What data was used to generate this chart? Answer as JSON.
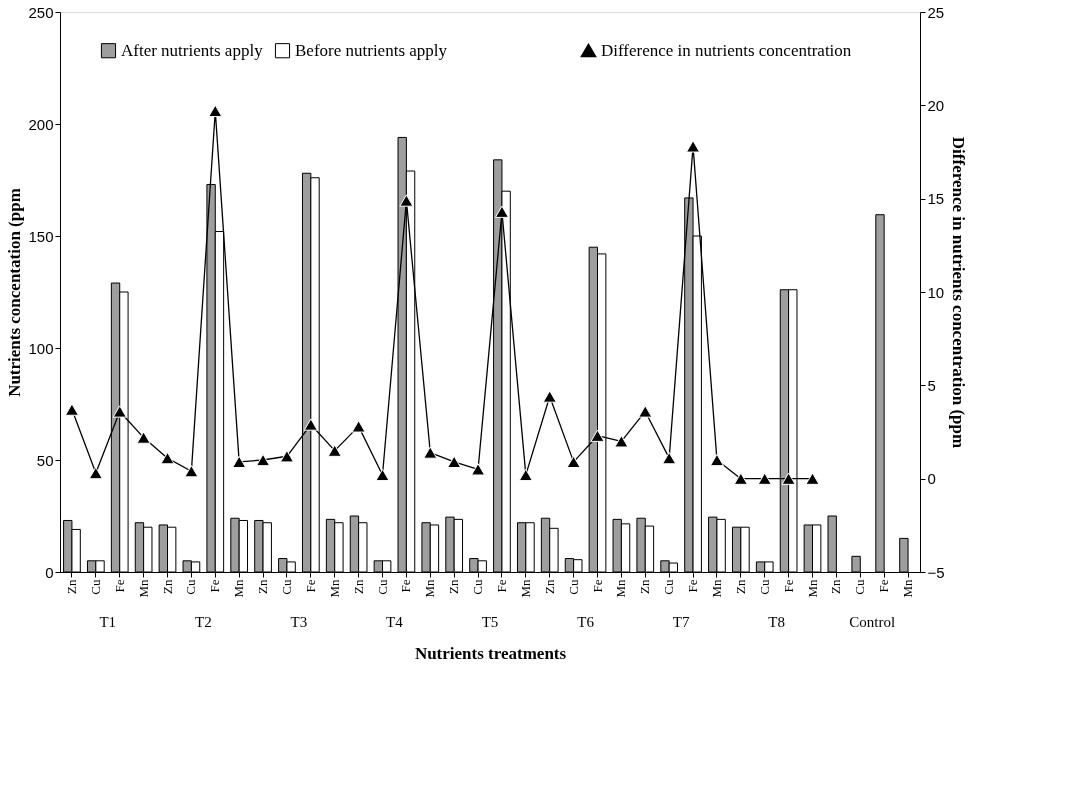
{
  "chart_data": {
    "type": "bar",
    "xlabel": "Nutrients treatments",
    "ylabel": "Nutrients concentation (ppm",
    "y2label": "Difference in nutrients concentration (ppm",
    "categories": [
      "Zn",
      "Cu",
      "Fe",
      "Mn",
      "Zn",
      "Cu",
      "Fe",
      "Mn",
      "Zn",
      "Cu",
      "Fe",
      "Mn",
      "Zn",
      "Cu",
      "Fe",
      "Mn",
      "Zn",
      "Cu",
      "Fe",
      "Mn",
      "Zn",
      "Cu",
      "Fe",
      "Mn",
      "Zn",
      "Cu",
      "Fe",
      "Mn",
      "Zn",
      "Cu",
      "Fe",
      "Mn",
      "Zn",
      "Cu",
      "Fe",
      "Mn"
    ],
    "annotations": [
      "T1",
      "T2",
      "T3",
      "T4",
      "T5",
      "T6",
      "T7",
      "T8",
      "Control"
    ],
    "series": [
      {
        "name": "After nutrients apply",
        "color": "#9e9e9e",
        "values": [
          23,
          5,
          129,
          22,
          21,
          5,
          173,
          24,
          23,
          6,
          178,
          23.5,
          25,
          5,
          194,
          22,
          24.5,
          6,
          184,
          22,
          24,
          6,
          145,
          23.5,
          24,
          5,
          167,
          24.5,
          20,
          4.5,
          126,
          21,
          25,
          7,
          159.5,
          15
        ]
      },
      {
        "name": "Before nutrients apply",
        "color": "#ffffff",
        "values": [
          19,
          5,
          125,
          20,
          20,
          4.5,
          152,
          23,
          22,
          4.5,
          176,
          22,
          22,
          5,
          179,
          21,
          23.5,
          5,
          170,
          22,
          19.5,
          5.5,
          142,
          21.5,
          20.5,
          4,
          150,
          23.5,
          20,
          4.5,
          126,
          21,
          null,
          null,
          null,
          null
        ]
      },
      {
        "name": "Difference in nutrients concentration",
        "type": "line",
        "axis": "y2",
        "color": "#000000",
        "marker": "triangle",
        "values": [
          3.7,
          0.3,
          3.6,
          2.2,
          1.1,
          0.4,
          19.7,
          0.9,
          1.0,
          1.2,
          2.9,
          1.5,
          2.8,
          0.2,
          14.9,
          1.4,
          0.9,
          0.5,
          14.3,
          0.2,
          4.4,
          0.9,
          2.3,
          2.0,
          3.6,
          1.1,
          17.8,
          1.0,
          0,
          0,
          0,
          0,
          null,
          null,
          null,
          null
        ]
      }
    ],
    "ylim": [
      0,
      250
    ],
    "yticks": [
      0,
      50,
      100,
      150,
      200,
      250
    ],
    "y2lim": [
      -5,
      25
    ],
    "y2ticks": [
      -5,
      0,
      5,
      10,
      15,
      20,
      25
    ],
    "legend": "top",
    "grid": false
  }
}
